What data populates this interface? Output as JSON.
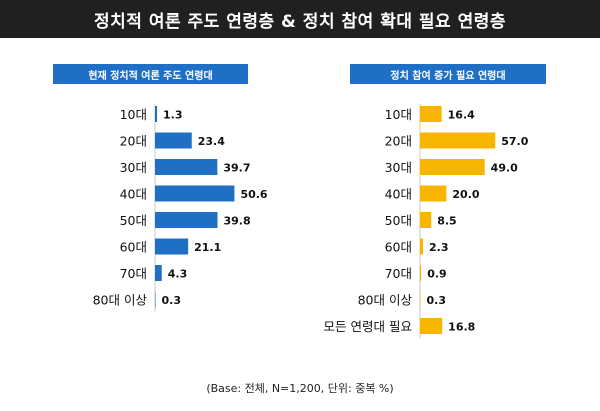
{
  "title": "정치적 여론 주도 연령층 & 정치 참여 확대 필요 연령층",
  "footnote": "(Base: 전체, N=1,200, 단위: 중복 %)",
  "colors": {
    "left_bar": "#1f6fc5",
    "right_bar": "#f7b500",
    "title_bg": "#202020"
  },
  "chart_data": [
    {
      "type": "bar",
      "orientation": "horizontal",
      "title": "현재 정치적 여론 주도 연령대",
      "categories": [
        "10대",
        "20대",
        "30대",
        "40대",
        "50대",
        "60대",
        "70대",
        "80대 이상"
      ],
      "values": [
        1.3,
        23.4,
        39.7,
        50.6,
        39.8,
        21.1,
        4.3,
        0.3
      ],
      "value_labels": [
        "1.3",
        "23.4",
        "39.7",
        "50.6",
        "39.8",
        "21.1",
        "4.3",
        "0.3"
      ],
      "xlim": [
        0,
        60
      ],
      "grid": false,
      "legend": "none"
    },
    {
      "type": "bar",
      "orientation": "horizontal",
      "title": "정치 참여 증가 필요 연령대",
      "categories": [
        "10대",
        "20대",
        "30대",
        "40대",
        "50대",
        "60대",
        "70대",
        "80대 이상",
        "모든 연령대 필요"
      ],
      "values": [
        16.4,
        57.0,
        49.0,
        20.0,
        8.5,
        2.3,
        0.9,
        0.3,
        16.8
      ],
      "value_labels": [
        "16.4",
        "57.0",
        "49.0",
        "20.0",
        "8.5",
        "2.3",
        "0.9",
        "0.3",
        "16.8"
      ],
      "xlim": [
        0,
        60
      ],
      "grid": false,
      "legend": "none"
    }
  ]
}
